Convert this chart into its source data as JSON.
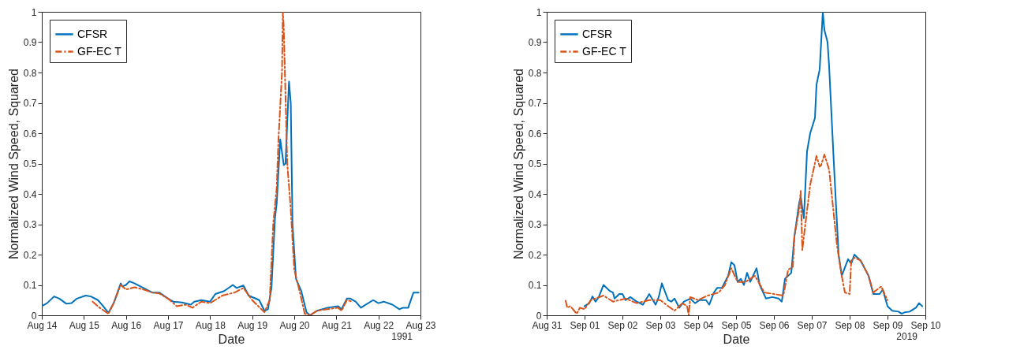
{
  "chart_data": [
    {
      "type": "line",
      "xlabel": "Date",
      "ylabel": "Normalized Wind Speed, Squared",
      "legend": "top left",
      "grid": false,
      "annotations": [
        "1991"
      ],
      "xlim": [
        "1991-08-14",
        "1991-08-23"
      ],
      "ylim": [
        0,
        1
      ],
      "xticks": [
        {
          "value": "1991-08-14",
          "label": "Aug 14"
        },
        {
          "value": "1991-08-15",
          "label": "Aug 15"
        },
        {
          "value": "1991-08-16",
          "label": "Aug 16"
        },
        {
          "value": "1991-08-17",
          "label": "Aug 17"
        },
        {
          "value": "1991-08-18",
          "label": "Aug 18"
        },
        {
          "value": "1991-08-19",
          "label": "Aug 19"
        },
        {
          "value": "1991-08-20",
          "label": "Aug 20"
        },
        {
          "value": "1991-08-21",
          "label": "Aug 21"
        },
        {
          "value": "1991-08-22",
          "label": "Aug 22"
        },
        {
          "value": "1991-08-23",
          "label": "Aug 23"
        }
      ],
      "yticks": [
        0,
        0.1,
        0.2,
        0.3,
        0.4,
        0.5,
        0.6,
        0.7,
        0.8,
        0.9,
        1
      ],
      "series": [
        {
          "name": "CFSR",
          "color": "#0072bd",
          "line_style": "solid",
          "x": [
            "1991-08-14T00:00",
            "1991-08-14T03:00",
            "1991-08-14T07:00",
            "1991-08-14T10:00",
            "1991-08-14T14:00",
            "1991-08-14T17:00",
            "1991-08-14T20:00",
            "1991-08-15T01:00",
            "1991-08-15T04:00",
            "1991-08-15T08:00",
            "1991-08-15T11:00",
            "1991-08-15T14:00",
            "1991-08-15T17:00",
            "1991-08-15T21:00",
            "1991-08-15T22:00",
            "1991-08-16T00:00",
            "1991-08-16T02:00",
            "1991-08-16T05:00",
            "1991-08-16T10:00",
            "1991-08-16T15:00",
            "1991-08-16T19:00",
            "1991-08-17T00:00",
            "1991-08-17T03:00",
            "1991-08-17T08:00",
            "1991-08-17T13:00",
            "1991-08-17T15:00",
            "1991-08-17T19:00",
            "1991-08-18T00:00",
            "1991-08-18T03:00",
            "1991-08-18T08:00",
            "1991-08-18T13:00",
            "1991-08-18T15:00",
            "1991-08-18T19:00",
            "1991-08-18T22:00",
            "1991-08-19T04:00",
            "1991-08-19T07:00",
            "1991-08-19T09:00",
            "1991-08-19T11:00",
            "1991-08-19T13:00",
            "1991-08-19T14:00",
            "1991-08-19T16:00",
            "1991-08-19T18:00",
            "1991-08-19T19:00",
            "1991-08-19T21:00",
            "1991-08-19T22:00",
            "1991-08-19T23:00",
            "1991-08-20T01:00",
            "1991-08-20T04:00",
            "1991-08-20T07:00",
            "1991-08-20T09:00",
            "1991-08-20T13:00",
            "1991-08-20T19:00",
            "1991-08-21T01:00",
            "1991-08-21T03:00",
            "1991-08-21T06:00",
            "1991-08-21T08:00",
            "1991-08-21T11:00",
            "1991-08-21T14:00",
            "1991-08-21T21:00",
            "1991-08-22T00:00",
            "1991-08-22T03:00",
            "1991-08-22T08:00",
            "1991-08-22T12:00",
            "1991-08-22T14:00",
            "1991-08-22T17:00",
            "1991-08-22T20:00",
            "1991-08-22T23:00"
          ],
          "values": [
            0.03,
            0.04,
            0.062,
            0.055,
            0.038,
            0.04,
            0.055,
            0.065,
            0.062,
            0.05,
            0.03,
            0.008,
            0.04,
            0.105,
            0.095,
            0.1,
            0.112,
            0.105,
            0.09,
            0.075,
            0.075,
            0.055,
            0.045,
            0.042,
            0.035,
            0.045,
            0.05,
            0.045,
            0.07,
            0.08,
            0.1,
            0.09,
            0.098,
            0.065,
            0.05,
            0.015,
            0.02,
            0.09,
            0.32,
            0.37,
            0.58,
            0.495,
            0.5,
            0.77,
            0.7,
            0.3,
            0.12,
            0.08,
            0.01,
            0,
            0.015,
            0.025,
            0.03,
            0.02,
            0.055,
            0.055,
            0.045,
            0.025,
            0.05,
            0.04,
            0.045,
            0.035,
            0.02,
            0.025,
            0.025,
            0.075,
            0.075
          ]
        },
        {
          "name": "GF-EC T",
          "color": "#d95319",
          "line_style": "dashed",
          "x": [
            "1991-08-15T05:00",
            "1991-08-15T09:00",
            "1991-08-15T14:00",
            "1991-08-15T17:00",
            "1991-08-15T21:00",
            "1991-08-16T00:00",
            "1991-08-16T05:00",
            "1991-08-16T10:00",
            "1991-08-16T15:00",
            "1991-08-16T19:00",
            "1991-08-17T00:00",
            "1991-08-17T05:00",
            "1991-08-17T10:00",
            "1991-08-17T14:00",
            "1991-08-17T19:00",
            "1991-08-18T00:00",
            "1991-08-18T07:00",
            "1991-08-18T14:00",
            "1991-08-18T19:00",
            "1991-08-19T00:00",
            "1991-08-19T07:00",
            "1991-08-19T10:00",
            "1991-08-19T12:00",
            "1991-08-19T14:00",
            "1991-08-19T15:00",
            "1991-08-19T17:00",
            "1991-08-19T17:30",
            "1991-08-19T18:00",
            "1991-08-19T20:00",
            "1991-08-19T22:00",
            "1991-08-20T00:00",
            "1991-08-20T03:00",
            "1991-08-20T06:00",
            "1991-08-20T09:00",
            "1991-08-20T13:00",
            "1991-08-20T19:00",
            "1991-08-21T01:00",
            "1991-08-21T03:00",
            "1991-08-21T06:00",
            "1991-08-21T09:00"
          ],
          "values": [
            0.045,
            0.025,
            0.005,
            0.04,
            0.1,
            0.085,
            0.092,
            0.085,
            0.075,
            0.072,
            0.055,
            0.03,
            0.035,
            0.025,
            0.045,
            0.04,
            0.065,
            0.075,
            0.09,
            0.05,
            0.01,
            0.05,
            0.3,
            0.42,
            0.58,
            0.8,
            1,
            0.95,
            0.5,
            0.35,
            0.15,
            0.08,
            0.005,
            0,
            0.015,
            0.02,
            0.025,
            0.015,
            0.05,
            0.045
          ]
        }
      ]
    },
    {
      "type": "line",
      "xlabel": "Date",
      "ylabel": "Normalized Wind Speed, Squared",
      "legend": "top left",
      "grid": false,
      "annotations": [
        "2019"
      ],
      "xlim": [
        "2019-08-31",
        "2019-09-10"
      ],
      "ylim": [
        0,
        1
      ],
      "xticks": [
        {
          "value": "2019-08-31",
          "label": "Aug 31"
        },
        {
          "value": "2019-09-01",
          "label": "Sep 01"
        },
        {
          "value": "2019-09-02",
          "label": "Sep 02"
        },
        {
          "value": "2019-09-03",
          "label": "Sep 03"
        },
        {
          "value": "2019-09-04",
          "label": "Sep 04"
        },
        {
          "value": "2019-09-05",
          "label": "Sep 05"
        },
        {
          "value": "2019-09-06",
          "label": "Sep 06"
        },
        {
          "value": "2019-09-07",
          "label": "Sep 07"
        },
        {
          "value": "2019-09-08",
          "label": "Sep 08"
        },
        {
          "value": "2019-09-09",
          "label": "Sep 09"
        },
        {
          "value": "2019-09-10",
          "label": "Sep 10"
        }
      ],
      "yticks": [
        0,
        0.1,
        0.2,
        0.3,
        0.4,
        0.5,
        0.6,
        0.7,
        0.8,
        0.9,
        1
      ],
      "series": [
        {
          "name": "CFSR",
          "color": "#0072bd",
          "line_style": "solid",
          "x": [
            "2019-09-01T00:00",
            "2019-09-01T03:00",
            "2019-09-01T05:00",
            "2019-09-01T07:00",
            "2019-09-01T09:00",
            "2019-09-01T12:00",
            "2019-09-01T16:00",
            "2019-09-01T18:00",
            "2019-09-01T19:00",
            "2019-09-01T22:00",
            "2019-09-02T00:00",
            "2019-09-02T02:00",
            "2019-09-02T05:00",
            "2019-09-02T09:00",
            "2019-09-02T13:00",
            "2019-09-02T17:00",
            "2019-09-02T21:00",
            "2019-09-02T23:00",
            "2019-09-03T01:00",
            "2019-09-03T05:00",
            "2019-09-03T07:00",
            "2019-09-03T09:00",
            "2019-09-03T12:00",
            "2019-09-03T15:00",
            "2019-09-03T19:00",
            "2019-09-03T22:00",
            "2019-09-04T01:00",
            "2019-09-04T05:00",
            "2019-09-04T07:00",
            "2019-09-04T10:00",
            "2019-09-04T12:00",
            "2019-09-04T15:00",
            "2019-09-04T19:00",
            "2019-09-04T21:00",
            "2019-09-04T23:00",
            "2019-09-05T01:00",
            "2019-09-05T03:00",
            "2019-09-05T05:00",
            "2019-09-05T07:00",
            "2019-09-05T09:00",
            "2019-09-05T13:00",
            "2019-09-05T15:00",
            "2019-09-05T19:00",
            "2019-09-05T23:00",
            "2019-09-06T03:00",
            "2019-09-06T05:00",
            "2019-09-06T07:00",
            "2019-09-06T11:00",
            "2019-09-06T13:00",
            "2019-09-06T16:00",
            "2019-09-06T17:00",
            "2019-09-06T19:00",
            "2019-09-06T21:00",
            "2019-09-06T23:00",
            "2019-09-07T02:00",
            "2019-09-07T03:00",
            "2019-09-07T05:00",
            "2019-09-07T07:00",
            "2019-09-07T08:00",
            "2019-09-07T10:00",
            "2019-09-07T11:00",
            "2019-09-07T14:00",
            "2019-09-07T17:00",
            "2019-09-07T19:00",
            "2019-09-07T23:00",
            "2019-09-08T01:00",
            "2019-09-08T03:00",
            "2019-09-08T07:00",
            "2019-09-08T12:00",
            "2019-09-08T15:00",
            "2019-09-08T19:00",
            "2019-09-08T21:00",
            "2019-09-09T00:00",
            "2019-09-09T03:00",
            "2019-09-09T07:00",
            "2019-09-09T09:00",
            "2019-09-09T11:00",
            "2019-09-09T14:00",
            "2019-09-09T18:00",
            "2019-09-09T20:00",
            "2019-09-09T22:00"
          ],
          "values": [
            0.03,
            0.04,
            0.062,
            0.045,
            0.06,
            0.1,
            0.08,
            0.075,
            0.055,
            0.07,
            0.07,
            0.05,
            0.06,
            0.045,
            0.035,
            0.07,
            0.035,
            0.06,
            0.105,
            0.05,
            0.045,
            0.055,
            0.025,
            0.045,
            0.055,
            0.04,
            0.05,
            0.05,
            0.035,
            0.075,
            0.09,
            0.09,
            0.13,
            0.175,
            0.165,
            0.11,
            0.12,
            0.1,
            0.14,
            0.11,
            0.155,
            0.1,
            0.055,
            0.06,
            0.055,
            0.045,
            0.12,
            0.14,
            0.26,
            0.37,
            0.39,
            0.32,
            0.54,
            0.6,
            0.65,
            0.76,
            0.81,
            1,
            0.94,
            0.9,
            0.82,
            0.5,
            0.2,
            0.13,
            0.185,
            0.17,
            0.2,
            0.18,
            0.13,
            0.07,
            0.07,
            0.085,
            0.03,
            0.015,
            0.012,
            0.005,
            0.01,
            0.012,
            0.025,
            0.04,
            0.03
          ]
        },
        {
          "name": "GF-EC T",
          "color": "#d95319",
          "line_style": "dashed",
          "x": [
            "2019-08-31T12:00",
            "2019-08-31T13:00",
            "2019-08-31T15:00",
            "2019-08-31T19:00",
            "2019-08-31T21:00",
            "2019-09-01T00:00",
            "2019-09-01T04:00",
            "2019-09-01T12:00",
            "2019-09-01T18:00",
            "2019-09-02T02:00",
            "2019-09-02T09:00",
            "2019-09-02T17:00",
            "2019-09-03T00:00",
            "2019-09-03T05:00",
            "2019-09-03T09:00",
            "2019-09-03T14:00",
            "2019-09-03T17:00",
            "2019-09-03T18:00",
            "2019-09-03T19:00",
            "2019-09-04T00:00",
            "2019-09-04T06:00",
            "2019-09-04T13:00",
            "2019-09-04T17:00",
            "2019-09-04T21:00",
            "2019-09-05T01:00",
            "2019-09-05T06:00",
            "2019-09-05T12:00",
            "2019-09-05T18:00",
            "2019-09-06T00:00",
            "2019-09-06T06:00",
            "2019-09-06T09:00",
            "2019-09-06T12:00",
            "2019-09-06T13:00",
            "2019-09-06T16:00",
            "2019-09-06T17:00",
            "2019-09-06T18:00",
            "2019-09-06T19:00",
            "2019-09-06T23:00",
            "2019-09-07T03:00",
            "2019-09-07T05:00",
            "2019-09-07T06:00",
            "2019-09-07T08:00",
            "2019-09-07T11:00",
            "2019-09-07T16:00",
            "2019-09-07T19:00",
            "2019-09-07T21:00",
            "2019-09-08T00:00",
            "2019-09-08T01:00",
            "2019-09-08T03:00",
            "2019-09-08T07:00",
            "2019-09-08T12:00",
            "2019-09-08T15:00",
            "2019-09-08T20:00",
            "2019-09-09T00:00"
          ],
          "values": [
            0.048,
            0.025,
            0.03,
            0.005,
            0.025,
            0.02,
            0.05,
            0.065,
            0.045,
            0.055,
            0.04,
            0.05,
            0.05,
            0.03,
            0.015,
            0.04,
            0.03,
            0,
            0.06,
            0.05,
            0.065,
            0.075,
            0.1,
            0.155,
            0.11,
            0.11,
            0.13,
            0.075,
            0.07,
            0.065,
            0.15,
            0.16,
            0.26,
            0.35,
            0.41,
            0.215,
            0.26,
            0.43,
            0.525,
            0.49,
            0.495,
            0.53,
            0.48,
            0.23,
            0.13,
            0.075,
            0.07,
            0.18,
            0.19,
            0.18,
            0.13,
            0.075,
            0.095,
            0.05
          ]
        }
      ]
    }
  ]
}
